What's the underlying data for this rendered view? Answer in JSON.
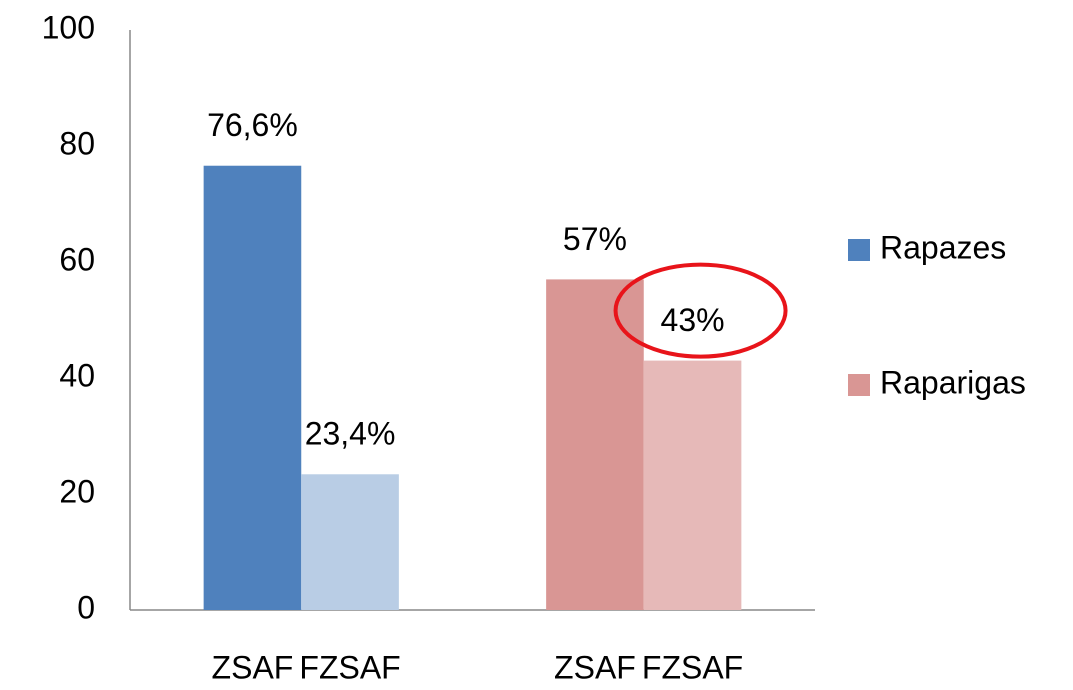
{
  "chart_data": {
    "type": "bar",
    "categories": [
      "ZSAF",
      "FZSAF"
    ],
    "series": [
      {
        "name": "Rapazes",
        "color": "#4f81bd",
        "colors": [
          "#4f81bd",
          "#b9cde5"
        ],
        "values": [
          76.6,
          23.4
        ],
        "value_labels": [
          "76,6%",
          "23,4%"
        ]
      },
      {
        "name": "Raparigas",
        "color": "#d99694",
        "colors": [
          "#d99694",
          "#e6b9b8"
        ],
        "values": [
          57,
          43
        ],
        "value_labels": [
          "57%",
          "43%"
        ]
      }
    ],
    "ylim": [
      0,
      100
    ],
    "yticks": [
      0,
      20,
      40,
      60,
      80,
      100
    ],
    "grid": false,
    "legend": "right"
  }
}
